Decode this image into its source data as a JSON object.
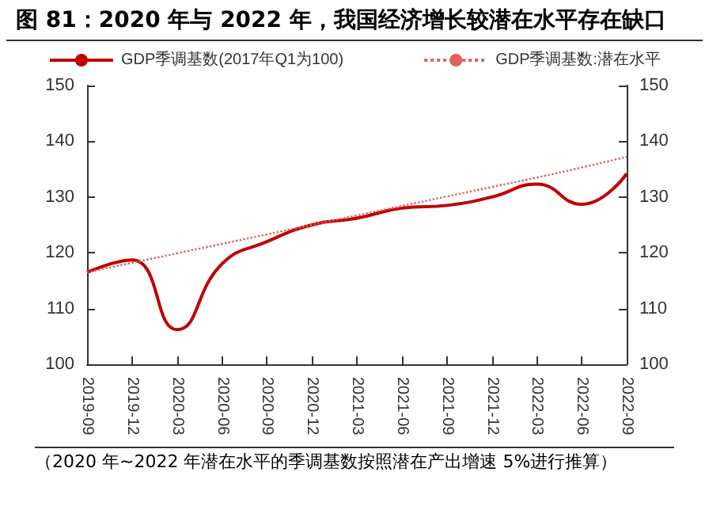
{
  "chart_data": {
    "type": "line",
    "title": "图 81：2020 年与 2022 年，我国经济增长较潜在水平存在缺口",
    "categories": [
      "2019-09",
      "2019-12",
      "2020-03",
      "2020-06",
      "2020-09",
      "2020-12",
      "2021-03",
      "2021-06",
      "2021-09",
      "2021-12",
      "2022-03",
      "2022-06",
      "2022-09"
    ],
    "series": [
      {
        "name": "GDP季调基数(2017年Q1为100)",
        "color": "#c00000",
        "line_style": "solid",
        "values": [
          116.5,
          118.7,
          106.2,
          118,
          122,
          125,
          126.2,
          128,
          128.5,
          130,
          132.3,
          128.7,
          134.2
        ]
      },
      {
        "name": "GDP季调基数:潜在水平",
        "color": "#e06060",
        "line_style": "dotted",
        "values": [
          116.5,
          118.2,
          119.9,
          121.6,
          123.3,
          125,
          126.7,
          128.4,
          130.1,
          131.8,
          133.5,
          135.3,
          137.2
        ]
      }
    ],
    "ylim": [
      100,
      150
    ],
    "yticks": [
      100,
      110,
      120,
      130,
      140,
      150
    ],
    "y2lim": [
      100,
      150
    ],
    "y2ticks": [
      100,
      110,
      120,
      130,
      140,
      150
    ],
    "grid": false,
    "legend": "top",
    "marker": "none",
    "annotations": [
      "（2020 年~2022 年潜在水平的季调基数按照潜在产出增速 5%进行推算）"
    ]
  }
}
